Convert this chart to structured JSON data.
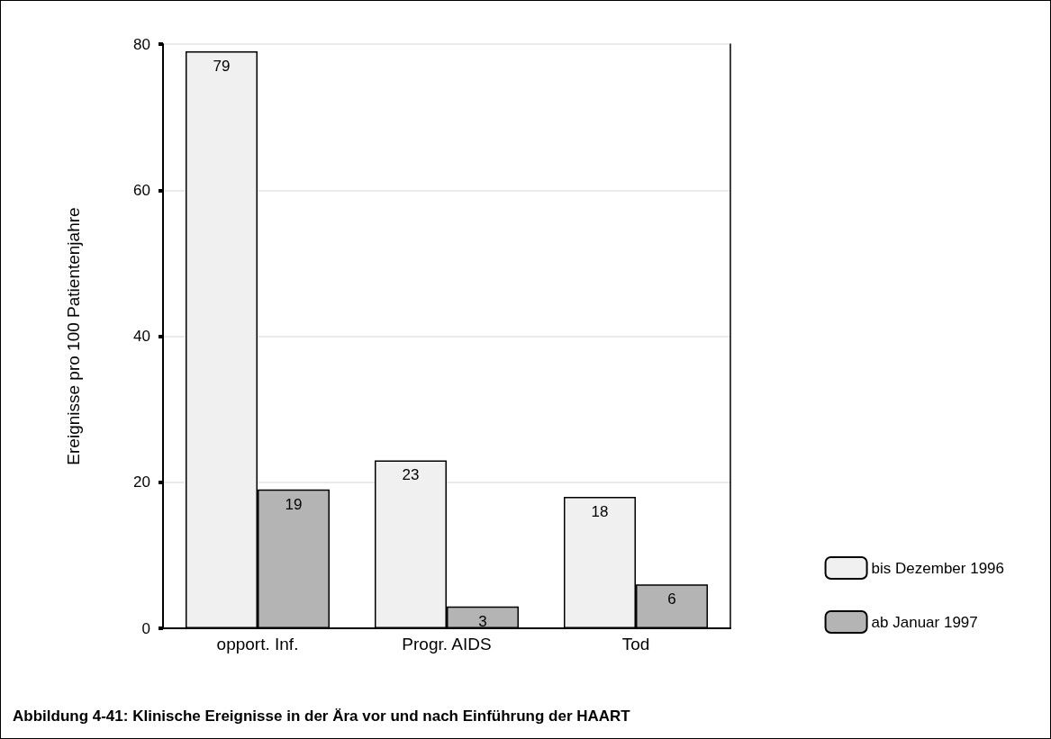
{
  "chart_data": {
    "type": "bar",
    "title": "Abbildung 4-41: Klinische Ereignisse in der Ära vor und nach Einführung der HAART",
    "ylabel": "Ereignisse pro 100 Patientenjahre",
    "categories": [
      "opport. Inf.",
      "Progr. AIDS",
      "Tod"
    ],
    "series": [
      {
        "name": "bis Dezember 1996",
        "color": "#f0f0f0",
        "values": [
          79,
          23,
          18
        ]
      },
      {
        "name": "ab Januar 1997",
        "color": "#b4b4b4",
        "values": [
          19,
          3,
          6
        ]
      }
    ],
    "ylim": [
      0,
      80
    ],
    "yticks": [
      0,
      20,
      40,
      60,
      80
    ],
    "grid": "y",
    "legend": "bottom right",
    "data_labels": true
  }
}
